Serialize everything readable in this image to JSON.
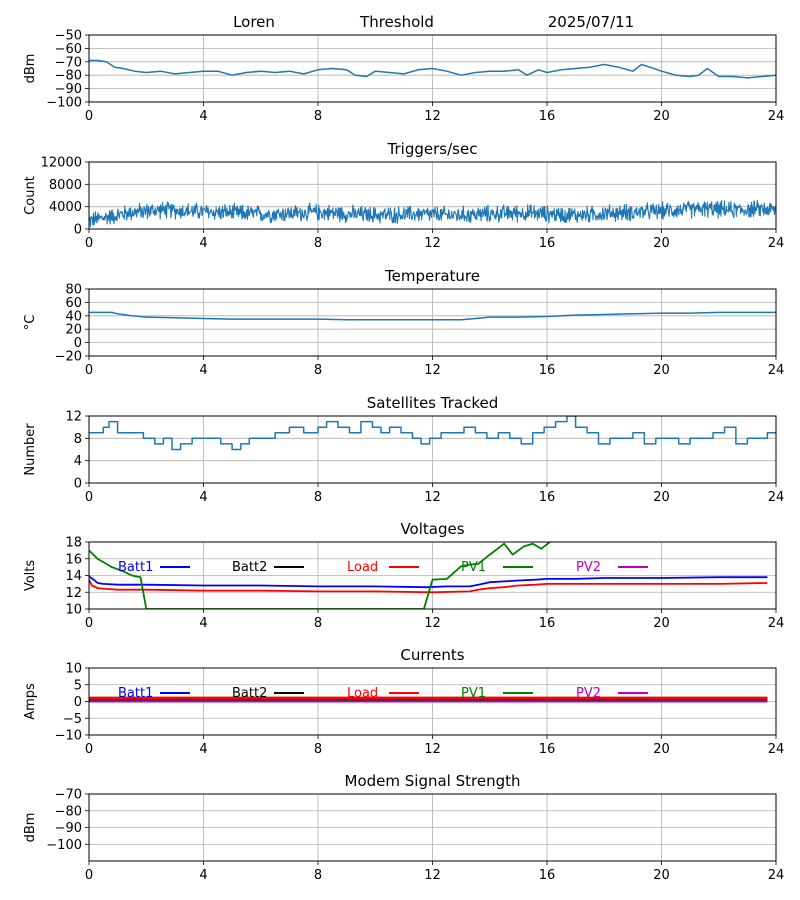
{
  "header": {
    "station": "Loren",
    "mode": "Threshold",
    "date": "2025/07/11"
  },
  "chart_data": [
    {
      "id": "noise",
      "type": "line",
      "title": "",
      "xlabel": "",
      "ylabel": "dBm",
      "xlim": [
        0,
        24
      ],
      "ylim": [
        -100,
        -50
      ],
      "xticks": [
        0,
        4,
        8,
        12,
        16,
        20,
        24
      ],
      "yticks": [
        -100,
        -90,
        -80,
        -70,
        -60,
        -50
      ],
      "grid": true,
      "series": [
        {
          "color": "#1f77b4",
          "x": [
            0,
            0.3,
            0.6,
            0.9,
            1.2,
            1.6,
            2,
            2.5,
            3,
            3.5,
            4,
            4.5,
            5,
            5.5,
            6,
            6.5,
            7,
            7.5,
            8,
            8.5,
            9,
            9.3,
            9.7,
            10,
            10.5,
            11,
            11.5,
            12,
            12.5,
            13,
            13.5,
            14,
            14.5,
            15,
            15.3,
            15.7,
            16,
            16.5,
            17,
            17.5,
            18,
            18.5,
            19,
            19.3,
            19.6,
            20,
            20.5,
            21,
            21.3,
            21.6,
            22,
            22.5,
            23,
            23.5,
            24
          ],
          "y": [
            -69,
            -69,
            -70,
            -74,
            -75,
            -77,
            -78,
            -77,
            -79,
            -78,
            -77,
            -77,
            -80,
            -78,
            -77,
            -78,
            -77,
            -79,
            -76,
            -75,
            -76,
            -80,
            -81,
            -77,
            -78,
            -79,
            -76,
            -75,
            -77,
            -80,
            -78,
            -77,
            -77,
            -76,
            -80,
            -76,
            -78,
            -76,
            -75,
            -74,
            -72,
            -74,
            -77,
            -72,
            -74,
            -77,
            -80,
            -81,
            -80,
            -75,
            -81,
            -81,
            -82,
            -81,
            -80
          ]
        }
      ]
    },
    {
      "id": "triggers",
      "type": "line",
      "title": "Triggers/sec",
      "xlabel": "",
      "ylabel": "Count",
      "xlim": [
        0,
        24
      ],
      "ylim": [
        0,
        12000
      ],
      "xticks": [
        0,
        4,
        8,
        12,
        16,
        20,
        24
      ],
      "yticks": [
        0,
        4000,
        8000,
        12000
      ],
      "grid": true,
      "series": [
        {
          "color": "#1f77b4",
          "x": [
            0,
            0.5,
            1,
            1.5,
            2,
            2.5,
            3,
            3.5,
            4,
            4.5,
            5,
            5.5,
            6,
            6.5,
            7,
            7.5,
            8,
            8.5,
            9,
            9.5,
            10,
            10.5,
            11,
            11.5,
            12,
            12.5,
            13,
            13.5,
            14,
            14.5,
            15,
            15.5,
            16,
            16.5,
            17,
            17.5,
            18,
            18.5,
            19,
            19.5,
            20,
            20.5,
            21,
            21.5,
            22,
            22.5,
            23,
            23.5,
            24
          ],
          "y": [
            1500,
            2000,
            2500,
            3000,
            3200,
            3400,
            3300,
            3200,
            3100,
            3000,
            2900,
            2800,
            2700,
            2700,
            2800,
            2900,
            3000,
            2900,
            2700,
            2600,
            2500,
            2500,
            2600,
            2700,
            2600,
            2500,
            2500,
            2600,
            2700,
            2800,
            2900,
            2800,
            2700,
            2600,
            2500,
            2600,
            2800,
            2900,
            3000,
            3100,
            3200,
            3400,
            3500,
            3600,
            3500,
            3400,
            3500,
            3600,
            3400
          ],
          "noise_amplitude": 1800
        }
      ]
    },
    {
      "id": "temperature",
      "type": "line",
      "title": "Temperature",
      "xlabel": "",
      "ylabel": "°C",
      "xlim": [
        0,
        24
      ],
      "ylim": [
        -20,
        80
      ],
      "xticks": [
        0,
        4,
        8,
        12,
        16,
        20,
        24
      ],
      "yticks": [
        -20,
        0,
        20,
        40,
        60,
        80
      ],
      "grid": true,
      "series": [
        {
          "color": "#1f77b4",
          "x": [
            0,
            0.8,
            1,
            1.5,
            2,
            3,
            4,
            5,
            6,
            7,
            8,
            9,
            10,
            11,
            12,
            13,
            13.5,
            14,
            15,
            16,
            17,
            18,
            19,
            20,
            21,
            22,
            23,
            24
          ],
          "y": [
            45,
            45,
            43,
            40,
            38,
            37,
            36,
            35,
            35,
            35,
            35,
            34,
            34,
            34,
            34,
            34,
            36,
            38,
            38,
            39,
            41,
            42,
            43,
            44,
            44,
            45,
            45,
            45
          ]
        }
      ]
    },
    {
      "id": "satellites",
      "type": "line",
      "title": "Satellites Tracked",
      "xlabel": "",
      "ylabel": "Number",
      "xlim": [
        0,
        24
      ],
      "ylim": [
        0,
        12
      ],
      "xticks": [
        0,
        4,
        8,
        12,
        16,
        20,
        24
      ],
      "yticks": [
        0,
        4,
        8,
        12
      ],
      "grid": true,
      "step": true,
      "series": [
        {
          "color": "#1f77b4",
          "x": [
            0,
            0.5,
            0.7,
            1,
            1.5,
            1.9,
            2.3,
            2.6,
            2.9,
            3.2,
            3.6,
            4,
            4.6,
            5,
            5.3,
            5.6,
            6,
            6.5,
            7,
            7.5,
            8,
            8.3,
            8.7,
            9.1,
            9.5,
            9.9,
            10.2,
            10.5,
            10.9,
            11.3,
            11.6,
            11.9,
            12.3,
            12.7,
            13.1,
            13.5,
            13.9,
            14.3,
            14.7,
            15.1,
            15.5,
            15.9,
            16.3,
            16.7,
            17,
            17.4,
            17.8,
            18.2,
            18.6,
            19,
            19.4,
            19.8,
            20.2,
            20.6,
            21,
            21.4,
            21.8,
            22.2,
            22.6,
            23,
            23.4,
            23.7,
            24
          ],
          "y": [
            9,
            10,
            11,
            9,
            9,
            8,
            7,
            8,
            6,
            7,
            8,
            8,
            7,
            6,
            7,
            8,
            8,
            9,
            10,
            9,
            10,
            11,
            10,
            9,
            11,
            10,
            9,
            10,
            9,
            8,
            7,
            8,
            9,
            9,
            10,
            9,
            8,
            9,
            8,
            7,
            9,
            10,
            11,
            12,
            10,
            9,
            7,
            8,
            8,
            9,
            7,
            8,
            8,
            7,
            8,
            8,
            9,
            10,
            7,
            8,
            8,
            9,
            9
          ]
        }
      ]
    },
    {
      "id": "voltages",
      "type": "line",
      "title": "Voltages",
      "xlabel": "",
      "ylabel": "Volts",
      "xlim": [
        0,
        24
      ],
      "ylim": [
        10,
        18
      ],
      "xticks": [
        0,
        4,
        8,
        12,
        16,
        20,
        24
      ],
      "yticks": [
        10,
        12,
        14,
        16,
        18
      ],
      "grid": true,
      "legend": "top, single row",
      "series": [
        {
          "name": "Batt1",
          "color": "#0000ff",
          "x": [
            0,
            0.2,
            0.3,
            0.5,
            1,
            2,
            4,
            6,
            8,
            10,
            11.8,
            12.5,
            13.3,
            13.6,
            14,
            14.5,
            15,
            15.6,
            16,
            17,
            18,
            20,
            22,
            23.7
          ],
          "y": [
            13.9,
            13.4,
            13.1,
            13,
            12.9,
            12.9,
            12.8,
            12.8,
            12.7,
            12.7,
            12.6,
            12.7,
            12.7,
            12.9,
            13.2,
            13.3,
            13.4,
            13.5,
            13.6,
            13.6,
            13.7,
            13.7,
            13.8,
            13.8
          ]
        },
        {
          "name": "Batt2",
          "color": "#000000",
          "x": [],
          "y": []
        },
        {
          "name": "Load",
          "color": "#ff0000",
          "x": [
            0,
            0.1,
            0.3,
            0.6,
            1,
            2,
            4,
            6,
            8,
            10,
            12,
            13.3,
            13.6,
            14,
            14.5,
            15,
            15.6,
            16,
            17,
            18,
            20,
            22,
            23.7
          ],
          "y": [
            13.5,
            12.8,
            12.5,
            12.4,
            12.3,
            12.3,
            12.2,
            12.2,
            12.1,
            12.1,
            12,
            12.1,
            12.3,
            12.5,
            12.6,
            12.8,
            12.9,
            13,
            13,
            13,
            13,
            13,
            13.1
          ]
        },
        {
          "name": "PV1",
          "color": "#008000",
          "x": [
            0,
            0.3,
            0.8,
            1.2,
            1.5,
            1.8,
            2,
            11.7,
            12,
            12.5,
            12.8,
            13,
            13.3,
            13.6,
            14,
            14.5,
            14.8,
            15.2,
            15.5,
            15.8,
            16.1
          ],
          "y": [
            17,
            16,
            15,
            14.5,
            14,
            13.8,
            10,
            10,
            13.5,
            13.6,
            14.5,
            15.1,
            15.3,
            15.4,
            16.5,
            17.8,
            16.5,
            17.5,
            17.8,
            17.2,
            18
          ]
        },
        {
          "name": "PV2",
          "color": "#bf00bf",
          "x": [],
          "y": []
        }
      ]
    },
    {
      "id": "currents",
      "type": "line",
      "title": "Currents",
      "xlabel": "",
      "ylabel": "Amps",
      "xlim": [
        0,
        24
      ],
      "ylim": [
        -10,
        10
      ],
      "xticks": [
        0,
        4,
        8,
        12,
        16,
        20,
        24
      ],
      "yticks": [
        -10,
        -5,
        0,
        5,
        10
      ],
      "grid": true,
      "legend": "top, single row",
      "series": [
        {
          "name": "Batt1",
          "color": "#0000ff",
          "x": [
            0,
            23.7
          ],
          "y": [
            0.8,
            0.8
          ]
        },
        {
          "name": "Batt2",
          "color": "#000000",
          "x": [
            0,
            23.7
          ],
          "y": [
            0.4,
            0.4
          ]
        },
        {
          "name": "Load",
          "color": "#ff0000",
          "x": [
            0,
            23.7
          ],
          "y": [
            1.0,
            1.0
          ]
        },
        {
          "name": "PV1",
          "color": "#008000",
          "x": [
            0,
            23.7
          ],
          "y": [
            0.1,
            0.1
          ]
        },
        {
          "name": "PV2",
          "color": "#bf00bf",
          "x": [
            0,
            23.7
          ],
          "y": [
            0,
            0
          ]
        }
      ]
    },
    {
      "id": "modem",
      "type": "line",
      "title": "Modem Signal Strength",
      "xlabel": "",
      "ylabel": "dBm",
      "xlim": [
        0,
        24
      ],
      "ylim": [
        -110,
        -70
      ],
      "xticks": [
        0,
        4,
        8,
        12,
        16,
        20,
        24
      ],
      "yticks": [
        -100,
        -90,
        -80,
        -70
      ],
      "grid": true,
      "series": []
    }
  ]
}
